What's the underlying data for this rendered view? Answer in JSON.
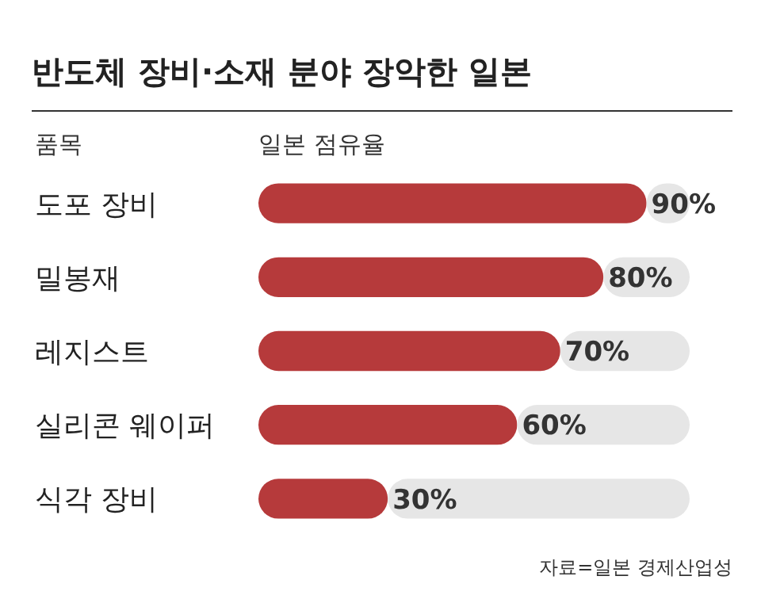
{
  "chart_data": {
    "type": "bar",
    "orientation": "horizontal",
    "stacked": true,
    "title": "반도체 장비·소재 분야 장악한 일본",
    "ylabel": "품목",
    "xlabel": "일본 점유율",
    "categories": [
      "도포 장비",
      "밀봉재",
      "레지스트",
      "실리콘 웨이퍼",
      "식각 장비"
    ],
    "xlim": [
      0,
      100
    ],
    "tick_labels": "y",
    "series": [
      {
        "color": "#b63a3b",
        "values": [
          90,
          80,
          70,
          60,
          30
        ],
        "value_labels": [
          "90%",
          "80%",
          "70%",
          "60%",
          "30%"
        ]
      },
      {
        "color": "#e6e6e6",
        "values": [
          10,
          20,
          30,
          40,
          70
        ]
      }
    ],
    "annotations": [
      "자료=일본 경제산업성"
    ]
  }
}
